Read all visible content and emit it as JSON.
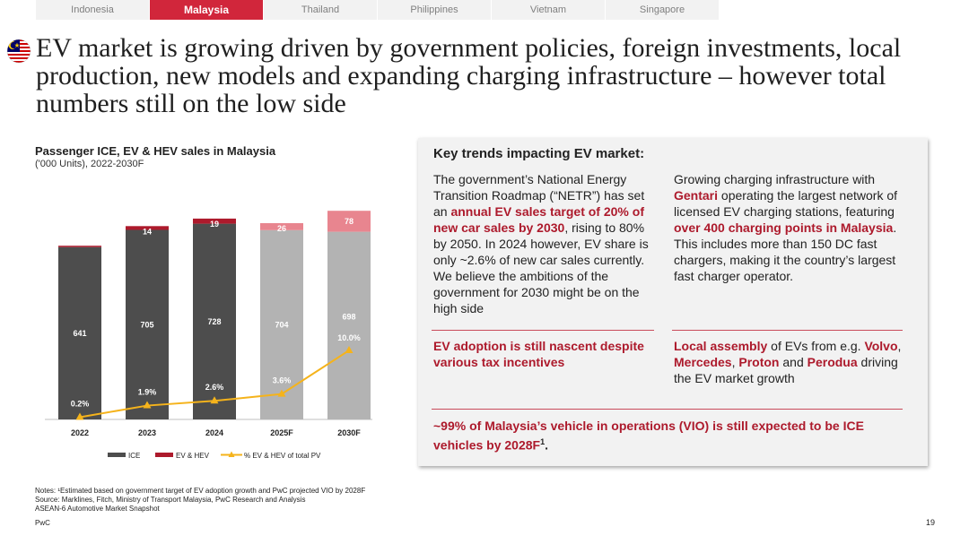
{
  "tabs": [
    {
      "label": "Indonesia",
      "active": false
    },
    {
      "label": "Malaysia",
      "active": true
    },
    {
      "label": "Thailand",
      "active": false
    },
    {
      "label": "Philippines",
      "active": false
    },
    {
      "label": "Vietnam",
      "active": false
    },
    {
      "label": "Singapore",
      "active": false
    }
  ],
  "page_title": "EV market is growing driven by government policies, foreign investments, local production, new models and expanding charging infrastructure – however total numbers still on the low side",
  "chart_header": {
    "title": "Passenger ICE, EV & HEV sales in Malaysia",
    "subtitle": "('000 Units), 2022-2030F"
  },
  "colors": {
    "accent": "#d1263b",
    "ice": "#4d4d4d",
    "ev_hev": "#ad1a2c",
    "forecast_ice": "#b3b3b3",
    "forecast_ev": "#e8858f",
    "line": "#f5b31b"
  },
  "chart_data": {
    "type": "bar",
    "stacked": true,
    "title": "Passenger ICE, EV & HEV sales in Malaysia",
    "subtitle": "('000 Units), 2022-2030F",
    "categories": [
      "2022",
      "2023",
      "2024",
      "2025F",
      "2030F"
    ],
    "forecast": [
      false,
      false,
      false,
      true,
      true
    ],
    "series": [
      {
        "name": "ICE",
        "values": [
          641,
          705,
          728,
          704,
          698
        ]
      },
      {
        "name": "EV & HEV",
        "values": [
          1,
          14,
          19,
          26,
          78
        ]
      }
    ],
    "line_series": {
      "name": "% EV & HEV of total PV",
      "values": [
        0.2,
        1.9,
        2.6,
        3.6,
        10.0
      ],
      "labels": [
        "0.2%",
        "1.9%",
        "2.6%",
        "3.6%",
        "10.0%"
      ]
    },
    "legend": [
      "ICE",
      "EV & HEV",
      "% EV & HEV of total PV"
    ],
    "legend_position": "bottom",
    "grid": false
  },
  "trends": {
    "title": "Key trends impacting EV market:",
    "left": {
      "p1": "The government’s National Energy Transition Roadmap (“NETR”) has set an ",
      "b1": "annual EV sales target of 20% of new car sales by 2030",
      "p2": ", rising to 80% by 2050. In 2024 however, EV share is only ~2.6% of new car sales currently. We believe the ambitions of the government for 2030 might be on the high side"
    },
    "right": {
      "p1": "Growing charging infrastructure with ",
      "b1": "Gentari",
      "p2": " operating the largest network of licensed EV charging stations, featuring ",
      "b2": "over 400 charging points in Malaysia",
      "p3": ". This includes more than 150 DC fast chargers, making it the country’s largest fast charger operator."
    },
    "adoption": "EV adoption is still nascent despite various tax incentives",
    "assembly": {
      "b1": "Local assembly",
      "p1": " of EVs from e.g. ",
      "b2": "Volvo",
      "p2": ", ",
      "b3": "Mercedes",
      "p3": ", ",
      "b4": "Proton",
      "p4": " and ",
      "b5": "Perodua",
      "p5": " driving the EV market growth"
    },
    "vio": "~99% of Malaysia’s vehicle in operations (VIO) is still expected to be ICE vehicles by 2028F",
    "vio_sup": "1",
    "vio_end": "."
  },
  "notes": {
    "line1": "Notes: ¹Estimated based on government target of EV adoption growth and PwC projected VIO by 2028F",
    "line2": "Source: Marklines, Fitch, Ministry of Transport Malaysia, PwC Research and Analysis",
    "line3": "ASEAN-6 Automotive Market Snapshot"
  },
  "footer": {
    "brand": "PwC",
    "page": "19"
  }
}
